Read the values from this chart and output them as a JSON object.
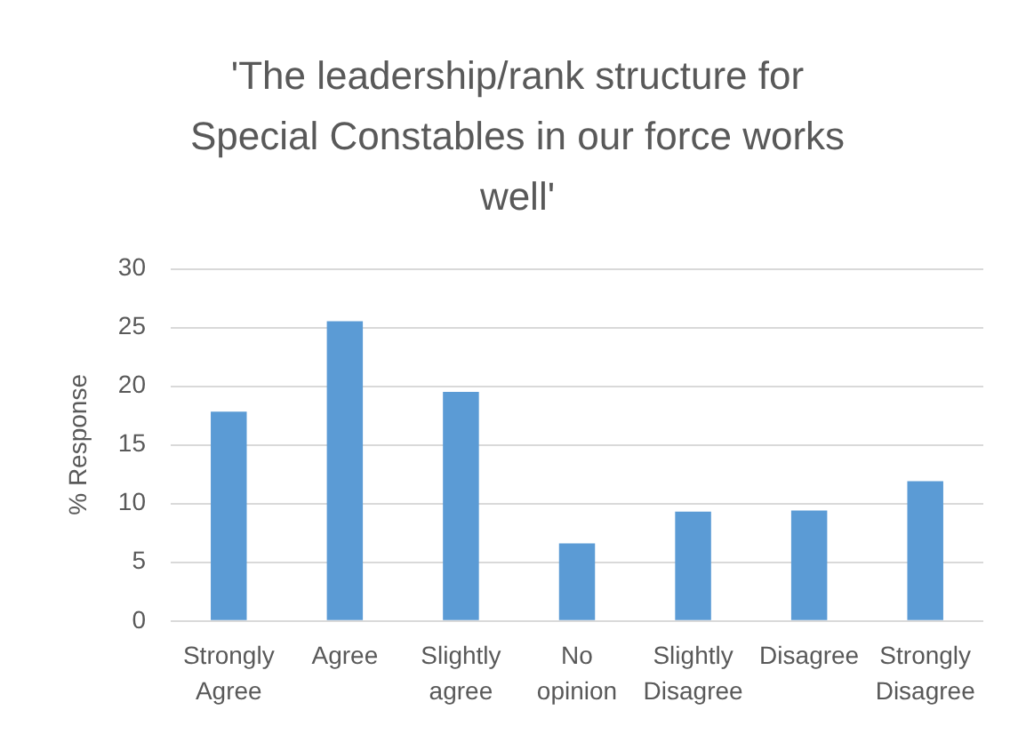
{
  "chart_data": {
    "type": "bar",
    "title": "'The leadership/rank structure for Special Constables in our force works well'",
    "ylabel": "% Response",
    "categories": [
      "Strongly Agree",
      "Agree",
      "Slightly agree",
      "No opinion",
      "Slightly Disagree",
      "Disagree",
      "Strongly Disagree"
    ],
    "values": [
      17.8,
      25.5,
      19.5,
      6.6,
      9.3,
      9.4,
      11.9
    ],
    "color": "#5b9bd5",
    "ylim": [
      0,
      30
    ],
    "yticks": [
      0,
      5,
      10,
      15,
      20,
      25,
      30
    ],
    "grid": "y"
  }
}
